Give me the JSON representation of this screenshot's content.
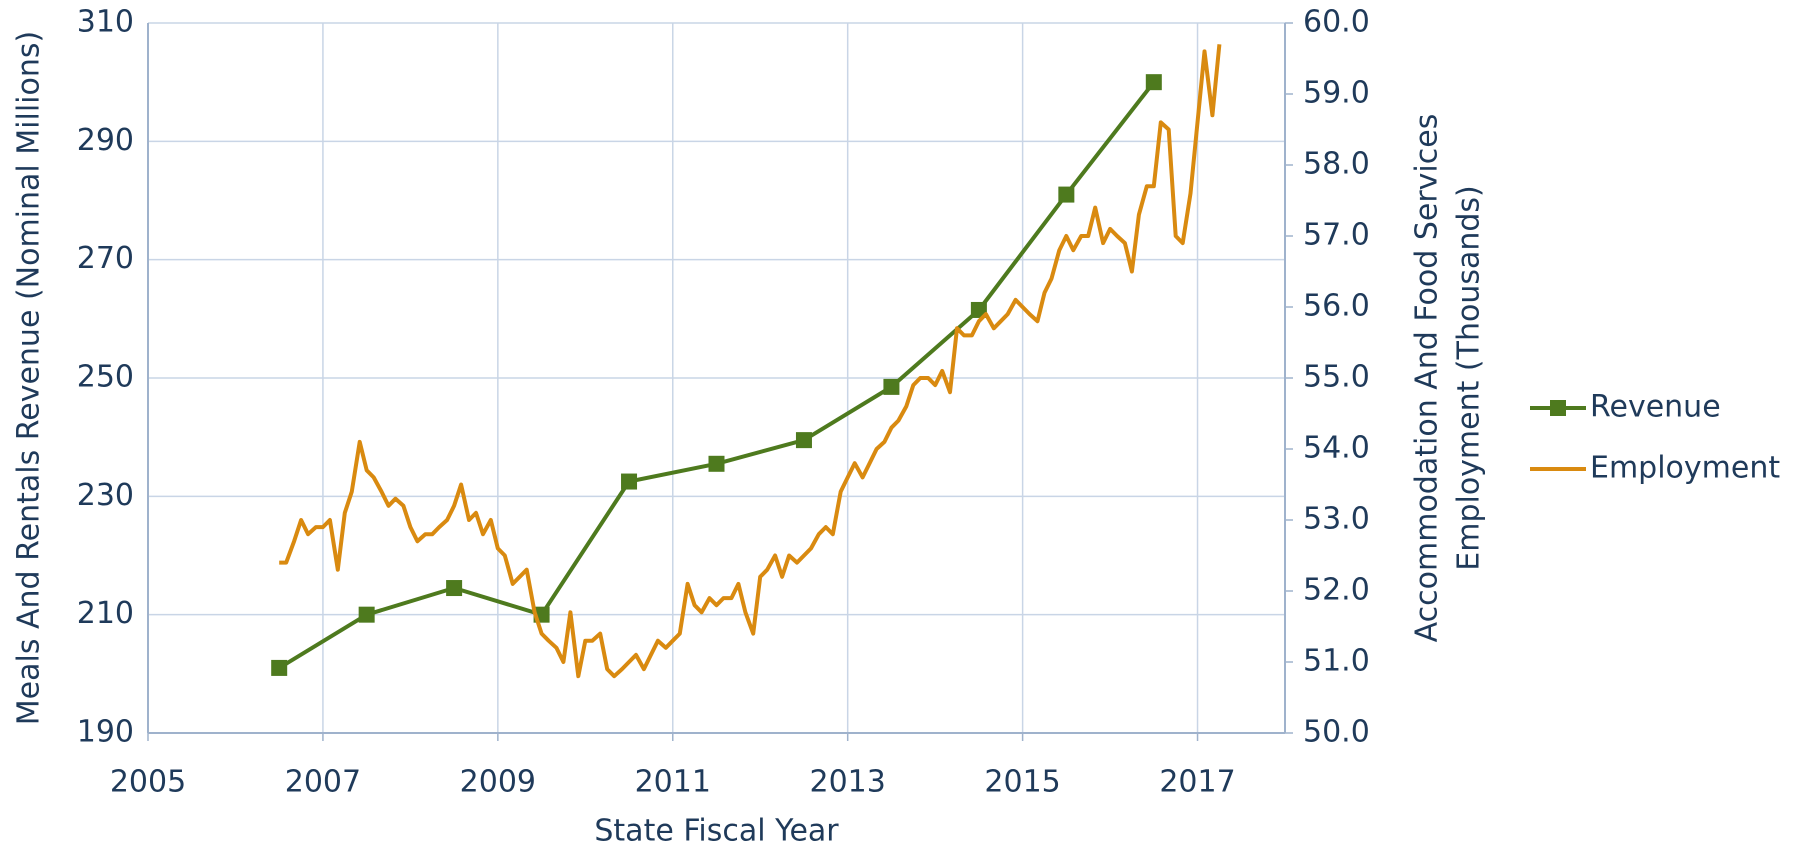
{
  "chart_data": {
    "type": "line",
    "xlabel": "State Fiscal Year",
    "ylabel": "Meals And Rentals Revenue (Nominal Millions)",
    "y2label": [
      "Accommodation And Food Services",
      "Employment (Thousands)"
    ],
    "xlim": [
      2005,
      2018
    ],
    "xticks": [
      2005,
      2007,
      2009,
      2011,
      2013,
      2015,
      2017
    ],
    "ylim": [
      190,
      310
    ],
    "yticks": [
      190,
      210,
      230,
      250,
      270,
      290,
      310
    ],
    "y2lim": [
      50,
      60
    ],
    "y2ticks": [
      {
        "value": 50,
        "label": "50.0"
      },
      {
        "value": 51,
        "label": "51.0"
      },
      {
        "value": 52,
        "label": "52.0"
      },
      {
        "value": 53,
        "label": "53.0"
      },
      {
        "value": 54,
        "label": "54.0"
      },
      {
        "value": 55,
        "label": "55.0"
      },
      {
        "value": 56,
        "label": "56.0"
      },
      {
        "value": 57,
        "label": "57.0"
      },
      {
        "value": 58,
        "label": "58.0"
      },
      {
        "value": 59,
        "label": "59.0"
      },
      {
        "value": 60,
        "label": "60.0"
      }
    ],
    "grid": true,
    "legend": "right",
    "series": [
      {
        "name": "Revenue",
        "color": "#4e7a1e",
        "marker": "square",
        "x": [
          2006.5,
          2007.5,
          2008.5,
          2009.5,
          2010.5,
          2011.5,
          2012.5,
          2013.5,
          2014.5,
          2015.5,
          2016.5
        ],
        "values": [
          201,
          210,
          214.5,
          210,
          232.5,
          235.5,
          239.5,
          248.5,
          261.5,
          281,
          300
        ]
      },
      {
        "name": "Employment",
        "color": "#d98a10",
        "axis": "y2",
        "x": [
          2006.5,
          2006.58,
          2006.67,
          2006.75,
          2006.83,
          2006.92,
          2007.0,
          2007.08,
          2007.17,
          2007.25,
          2007.33,
          2007.42,
          2007.5,
          2007.58,
          2007.67,
          2007.75,
          2007.83,
          2007.92,
          2008.0,
          2008.08,
          2008.17,
          2008.25,
          2008.33,
          2008.42,
          2008.5,
          2008.58,
          2008.67,
          2008.75,
          2008.83,
          2008.92,
          2009.0,
          2009.08,
          2009.17,
          2009.25,
          2009.33,
          2009.42,
          2009.5,
          2009.58,
          2009.67,
          2009.75,
          2009.83,
          2009.92,
          2010.0,
          2010.08,
          2010.17,
          2010.25,
          2010.33,
          2010.42,
          2010.5,
          2010.58,
          2010.67,
          2010.75,
          2010.83,
          2010.92,
          2011.0,
          2011.08,
          2011.17,
          2011.25,
          2011.33,
          2011.42,
          2011.5,
          2011.58,
          2011.67,
          2011.75,
          2011.83,
          2011.92,
          2012.0,
          2012.08,
          2012.17,
          2012.25,
          2012.33,
          2012.42,
          2012.5,
          2012.58,
          2012.67,
          2012.75,
          2012.83,
          2012.92,
          2013.0,
          2013.08,
          2013.17,
          2013.25,
          2013.33,
          2013.42,
          2013.5,
          2013.58,
          2013.67,
          2013.75,
          2013.83,
          2013.92,
          2014.0,
          2014.08,
          2014.17,
          2014.25,
          2014.33,
          2014.42,
          2014.5,
          2014.58,
          2014.67,
          2014.75,
          2014.83,
          2014.92,
          2015.0,
          2015.08,
          2015.17,
          2015.25,
          2015.33,
          2015.42,
          2015.5,
          2015.58,
          2015.67,
          2015.75,
          2015.83,
          2015.92,
          2016.0,
          2016.08,
          2016.17,
          2016.25,
          2016.33,
          2016.42,
          2016.5,
          2016.58,
          2016.67,
          2016.75,
          2016.83,
          2016.92,
          2017.0,
          2017.08,
          2017.17,
          2017.25
        ],
        "values": [
          52.4,
          52.4,
          52.7,
          53.0,
          52.8,
          52.9,
          52.9,
          53.0,
          52.3,
          53.1,
          53.4,
          54.1,
          53.7,
          53.6,
          53.4,
          53.2,
          53.3,
          53.2,
          52.9,
          52.7,
          52.8,
          52.8,
          52.9,
          53.0,
          53.2,
          53.5,
          53.0,
          53.1,
          52.8,
          53.0,
          52.6,
          52.5,
          52.1,
          52.2,
          52.3,
          51.7,
          51.4,
          51.3,
          51.2,
          51.0,
          51.7,
          50.8,
          51.3,
          51.3,
          51.4,
          50.9,
          50.8,
          50.9,
          51.0,
          51.1,
          50.9,
          51.1,
          51.3,
          51.2,
          51.3,
          51.4,
          52.1,
          51.8,
          51.7,
          51.9,
          51.8,
          51.9,
          51.9,
          52.1,
          51.7,
          51.4,
          52.2,
          52.3,
          52.5,
          52.2,
          52.5,
          52.4,
          52.5,
          52.6,
          52.8,
          52.9,
          52.8,
          53.4,
          53.6,
          53.8,
          53.6,
          53.8,
          54.0,
          54.1,
          54.3,
          54.4,
          54.6,
          54.9,
          55.0,
          55.0,
          54.9,
          55.1,
          54.8,
          55.7,
          55.6,
          55.6,
          55.8,
          55.9,
          55.7,
          55.8,
          55.9,
          56.1,
          56.0,
          55.9,
          55.8,
          56.2,
          56.4,
          56.8,
          57.0,
          56.8,
          57.0,
          57.0,
          57.4,
          56.9,
          57.1,
          57.0,
          56.9,
          56.5,
          57.3,
          57.7,
          57.7,
          58.6,
          58.5,
          57.0,
          56.9,
          57.6,
          58.6,
          59.6,
          58.7,
          59.7
        ]
      }
    ]
  }
}
